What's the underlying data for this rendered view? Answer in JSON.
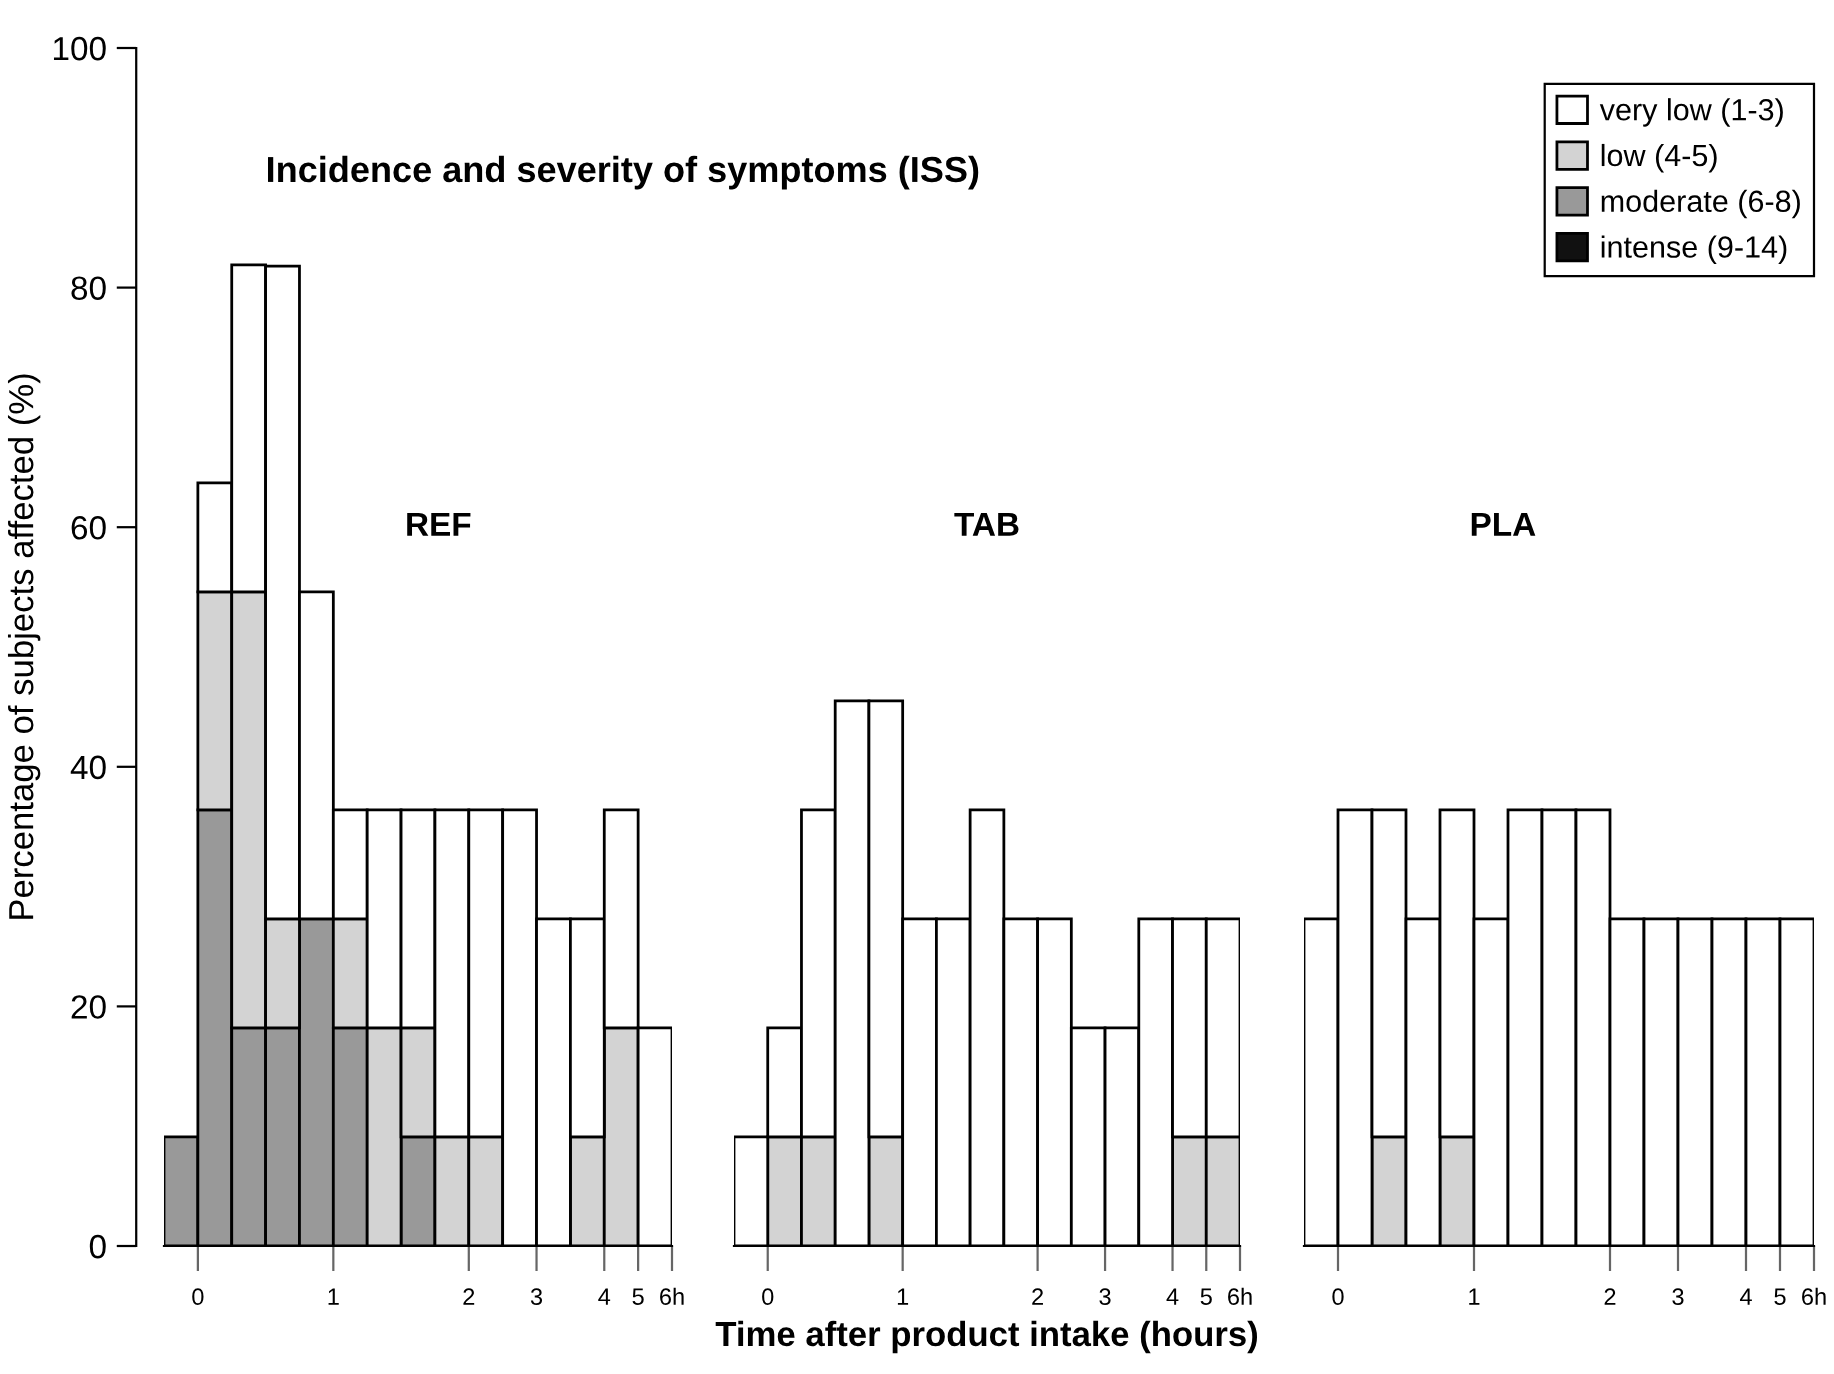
{
  "chart_data": [
    {
      "type": "bar",
      "stacked": true,
      "title": "Incidence and severity of symptoms (ISS)",
      "ylabel": "Percentage of subjects affected (%)",
      "annotations": [
        "REF"
      ],
      "categories": [
        "0",
        null,
        null,
        null,
        "1",
        null,
        null,
        null,
        "2",
        null,
        "3",
        null,
        "4",
        "5",
        "6h"
      ],
      "ylim": [
        0,
        100
      ],
      "yticks": [
        0,
        20,
        40,
        60,
        80,
        100
      ],
      "series": [
        {
          "color": "#111111",
          "values": [
            0,
            0,
            0,
            0,
            0,
            0,
            0,
            0,
            0,
            0,
            0,
            0,
            0,
            0,
            0
          ]
        },
        {
          "color": "#999999",
          "values": [
            9.1,
            36.4,
            18.2,
            18.2,
            27.3,
            18.2,
            0,
            9.1,
            0,
            0,
            0,
            0,
            0,
            0,
            0
          ]
        },
        {
          "color": "#d3d3d3",
          "values": [
            0,
            18.2,
            36.4,
            9.1,
            0,
            9.1,
            18.2,
            9.1,
            9.1,
            9.1,
            0,
            0,
            9.1,
            18.2,
            0
          ]
        },
        {
          "color": "#ffffff",
          "values": [
            0,
            9.1,
            27.3,
            54.5,
            27.3,
            9.1,
            18.2,
            18.2,
            27.3,
            27.3,
            36.4,
            27.3,
            18.2,
            18.2,
            18.2
          ]
        }
      ]
    },
    {
      "type": "bar",
      "stacked": true,
      "xlabel": "Time after product intake (hours)",
      "annotations": [
        "TAB"
      ],
      "tick_labels": "x",
      "categories": [
        "0",
        null,
        null,
        null,
        "1",
        null,
        null,
        null,
        "2",
        null,
        "3",
        null,
        "4",
        "5",
        "6h"
      ],
      "ylim": [
        0,
        100
      ],
      "series": [
        {
          "color": "#111111",
          "values": [
            0,
            0,
            0,
            0,
            0,
            0,
            0,
            0,
            0,
            0,
            0,
            0,
            0,
            0,
            0
          ]
        },
        {
          "color": "#999999",
          "values": [
            0,
            0,
            0,
            0,
            0,
            0,
            0,
            0,
            0,
            0,
            0,
            0,
            0,
            0,
            0
          ]
        },
        {
          "color": "#d3d3d3",
          "values": [
            0,
            9.1,
            9.1,
            0,
            9.1,
            0,
            0,
            0,
            0,
            0,
            0,
            0,
            0,
            9.1,
            9.1
          ]
        },
        {
          "color": "#ffffff",
          "values": [
            9.1,
            9.1,
            27.3,
            45.5,
            36.4,
            27.3,
            27.3,
            36.4,
            27.3,
            27.3,
            18.2,
            18.2,
            27.3,
            18.2,
            18.2
          ]
        }
      ]
    },
    {
      "type": "bar",
      "stacked": true,
      "annotations": [
        "PLA"
      ],
      "tick_labels": "x",
      "legend": "top right",
      "categories": [
        "0",
        null,
        null,
        null,
        "1",
        null,
        null,
        null,
        "2",
        null,
        "3",
        null,
        "4",
        "5",
        "6h"
      ],
      "ylim": [
        0,
        100
      ],
      "series": [
        {
          "name": "intense (9-14)",
          "color": "#111111",
          "values": [
            0,
            0,
            0,
            0,
            0,
            0,
            0,
            0,
            0,
            0,
            0,
            0,
            0,
            0,
            0
          ]
        },
        {
          "name": "moderate (6-8)",
          "color": "#999999",
          "values": [
            0,
            0,
            0,
            0,
            0,
            0,
            0,
            0,
            0,
            0,
            0,
            0,
            0,
            0,
            0
          ]
        },
        {
          "name": "low (4-5)",
          "color": "#d3d3d3",
          "values": [
            0,
            0,
            9.1,
            0,
            9.1,
            0,
            0,
            0,
            0,
            0,
            0,
            0,
            0,
            0,
            0
          ]
        },
        {
          "name": "very low (1-3)",
          "color": "#ffffff",
          "values": [
            27.3,
            36.4,
            27.3,
            27.3,
            27.3,
            27.3,
            36.4,
            36.4,
            36.4,
            27.3,
            27.3,
            27.3,
            27.3,
            27.3,
            27.3
          ]
        }
      ]
    }
  ]
}
